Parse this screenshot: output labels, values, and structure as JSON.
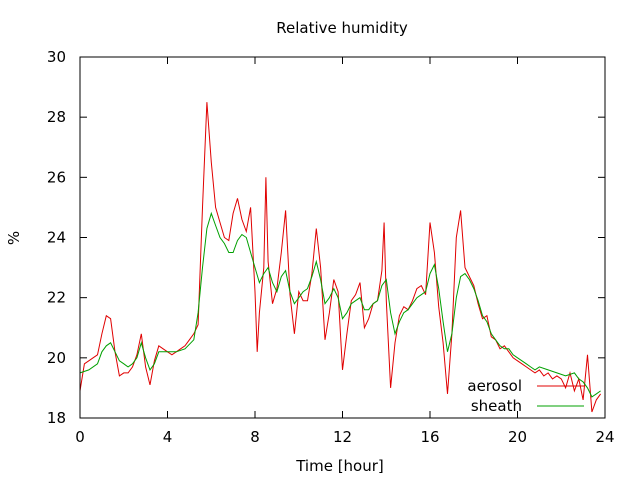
{
  "chart_data": {
    "type": "line",
    "title": "Relative humidity",
    "xlabel": "Time [hour]",
    "ylabel": "%",
    "xlim": [
      0,
      24
    ],
    "ylim": [
      18,
      30
    ],
    "xticks": [
      0,
      4,
      8,
      12,
      16,
      20,
      24
    ],
    "yticks": [
      18,
      20,
      22,
      24,
      26,
      28,
      30
    ],
    "grid": false,
    "legend_position": "bottom-right",
    "series": [
      {
        "name": "aerosol",
        "color": "#e00000",
        "points": [
          [
            0.0,
            18.9
          ],
          [
            0.2,
            19.8
          ],
          [
            0.4,
            19.9
          ],
          [
            0.6,
            20.0
          ],
          [
            0.8,
            20.1
          ],
          [
            1.0,
            20.8
          ],
          [
            1.2,
            21.4
          ],
          [
            1.4,
            21.3
          ],
          [
            1.6,
            20.2
          ],
          [
            1.8,
            19.4
          ],
          [
            2.0,
            19.5
          ],
          [
            2.2,
            19.5
          ],
          [
            2.4,
            19.7
          ],
          [
            2.6,
            20.1
          ],
          [
            2.8,
            20.8
          ],
          [
            3.0,
            19.7
          ],
          [
            3.2,
            19.1
          ],
          [
            3.4,
            19.9
          ],
          [
            3.6,
            20.4
          ],
          [
            3.8,
            20.3
          ],
          [
            4.0,
            20.2
          ],
          [
            4.2,
            20.1
          ],
          [
            4.4,
            20.2
          ],
          [
            4.6,
            20.3
          ],
          [
            4.8,
            20.4
          ],
          [
            5.0,
            20.6
          ],
          [
            5.2,
            20.8
          ],
          [
            5.4,
            21.1
          ],
          [
            5.6,
            25.0
          ],
          [
            5.8,
            28.5
          ],
          [
            6.0,
            26.5
          ],
          [
            6.2,
            25.0
          ],
          [
            6.4,
            24.5
          ],
          [
            6.6,
            24.0
          ],
          [
            6.8,
            23.9
          ],
          [
            7.0,
            24.8
          ],
          [
            7.2,
            25.3
          ],
          [
            7.4,
            24.6
          ],
          [
            7.6,
            24.2
          ],
          [
            7.8,
            25.0
          ],
          [
            8.0,
            22.2
          ],
          [
            8.1,
            20.2
          ],
          [
            8.2,
            21.5
          ],
          [
            8.4,
            23.0
          ],
          [
            8.5,
            26.0
          ],
          [
            8.6,
            23.2
          ],
          [
            8.8,
            21.8
          ],
          [
            9.0,
            22.3
          ],
          [
            9.2,
            23.5
          ],
          [
            9.4,
            24.9
          ],
          [
            9.6,
            22.1
          ],
          [
            9.8,
            20.8
          ],
          [
            10.0,
            22.2
          ],
          [
            10.2,
            21.9
          ],
          [
            10.4,
            21.9
          ],
          [
            10.6,
            22.8
          ],
          [
            10.8,
            24.3
          ],
          [
            11.0,
            23.0
          ],
          [
            11.2,
            20.6
          ],
          [
            11.4,
            21.5
          ],
          [
            11.6,
            22.6
          ],
          [
            11.8,
            22.2
          ],
          [
            12.0,
            19.6
          ],
          [
            12.2,
            20.8
          ],
          [
            12.4,
            21.9
          ],
          [
            12.6,
            22.1
          ],
          [
            12.8,
            22.5
          ],
          [
            13.0,
            21.0
          ],
          [
            13.2,
            21.3
          ],
          [
            13.4,
            21.8
          ],
          [
            13.6,
            21.9
          ],
          [
            13.8,
            22.9
          ],
          [
            13.9,
            24.5
          ],
          [
            14.0,
            21.9
          ],
          [
            14.2,
            19.0
          ],
          [
            14.4,
            20.5
          ],
          [
            14.6,
            21.4
          ],
          [
            14.8,
            21.7
          ],
          [
            15.0,
            21.6
          ],
          [
            15.2,
            21.9
          ],
          [
            15.4,
            22.3
          ],
          [
            15.6,
            22.4
          ],
          [
            15.8,
            22.1
          ],
          [
            16.0,
            24.5
          ],
          [
            16.2,
            23.5
          ],
          [
            16.4,
            21.7
          ],
          [
            16.6,
            20.5
          ],
          [
            16.8,
            18.8
          ],
          [
            17.0,
            20.8
          ],
          [
            17.2,
            24.0
          ],
          [
            17.4,
            24.9
          ],
          [
            17.6,
            23.0
          ],
          [
            17.8,
            22.7
          ],
          [
            18.0,
            22.4
          ],
          [
            18.2,
            21.8
          ],
          [
            18.4,
            21.3
          ],
          [
            18.6,
            21.4
          ],
          [
            18.8,
            20.7
          ],
          [
            19.0,
            20.6
          ],
          [
            19.2,
            20.3
          ],
          [
            19.4,
            20.4
          ],
          [
            19.6,
            20.2
          ],
          [
            19.8,
            20.0
          ],
          [
            20.0,
            19.9
          ],
          [
            20.2,
            19.8
          ],
          [
            20.4,
            19.7
          ],
          [
            20.6,
            19.6
          ],
          [
            20.8,
            19.5
          ],
          [
            21.0,
            19.6
          ],
          [
            21.2,
            19.4
          ],
          [
            21.4,
            19.5
          ],
          [
            21.6,
            19.3
          ],
          [
            21.8,
            19.4
          ],
          [
            22.0,
            19.3
          ],
          [
            22.2,
            19.0
          ],
          [
            22.4,
            19.5
          ],
          [
            22.6,
            18.9
          ],
          [
            22.8,
            19.3
          ],
          [
            23.0,
            18.6
          ],
          [
            23.2,
            20.1
          ],
          [
            23.4,
            18.2
          ],
          [
            23.6,
            18.6
          ],
          [
            23.8,
            18.8
          ]
        ]
      },
      {
        "name": "sheath",
        "color": "#00a000",
        "points": [
          [
            0.0,
            19.5
          ],
          [
            0.4,
            19.6
          ],
          [
            0.8,
            19.8
          ],
          [
            1.0,
            20.2
          ],
          [
            1.2,
            20.4
          ],
          [
            1.4,
            20.5
          ],
          [
            1.6,
            20.2
          ],
          [
            1.8,
            19.9
          ],
          [
            2.0,
            19.8
          ],
          [
            2.2,
            19.7
          ],
          [
            2.4,
            19.8
          ],
          [
            2.6,
            20.0
          ],
          [
            2.8,
            20.5
          ],
          [
            3.0,
            20.0
          ],
          [
            3.2,
            19.6
          ],
          [
            3.4,
            19.8
          ],
          [
            3.6,
            20.2
          ],
          [
            3.8,
            20.2
          ],
          [
            4.0,
            20.2
          ],
          [
            4.4,
            20.2
          ],
          [
            4.8,
            20.3
          ],
          [
            5.2,
            20.6
          ],
          [
            5.4,
            21.5
          ],
          [
            5.6,
            23.0
          ],
          [
            5.8,
            24.3
          ],
          [
            6.0,
            24.8
          ],
          [
            6.2,
            24.4
          ],
          [
            6.4,
            24.0
          ],
          [
            6.6,
            23.8
          ],
          [
            6.8,
            23.5
          ],
          [
            7.0,
            23.5
          ],
          [
            7.2,
            23.9
          ],
          [
            7.4,
            24.1
          ],
          [
            7.6,
            24.0
          ],
          [
            7.8,
            23.5
          ],
          [
            8.0,
            23.0
          ],
          [
            8.2,
            22.5
          ],
          [
            8.4,
            22.8
          ],
          [
            8.6,
            23.0
          ],
          [
            8.8,
            22.5
          ],
          [
            9.0,
            22.2
          ],
          [
            9.2,
            22.7
          ],
          [
            9.4,
            22.9
          ],
          [
            9.6,
            22.2
          ],
          [
            9.8,
            21.8
          ],
          [
            10.0,
            22.0
          ],
          [
            10.2,
            22.2
          ],
          [
            10.4,
            22.3
          ],
          [
            10.6,
            22.7
          ],
          [
            10.8,
            23.2
          ],
          [
            11.0,
            22.6
          ],
          [
            11.2,
            21.8
          ],
          [
            11.4,
            22.0
          ],
          [
            11.6,
            22.3
          ],
          [
            11.8,
            22.0
          ],
          [
            12.0,
            21.3
          ],
          [
            12.2,
            21.5
          ],
          [
            12.4,
            21.8
          ],
          [
            12.6,
            21.9
          ],
          [
            12.8,
            22.0
          ],
          [
            13.0,
            21.6
          ],
          [
            13.2,
            21.6
          ],
          [
            13.4,
            21.8
          ],
          [
            13.6,
            21.9
          ],
          [
            13.8,
            22.4
          ],
          [
            14.0,
            22.6
          ],
          [
            14.2,
            21.5
          ],
          [
            14.4,
            20.8
          ],
          [
            14.6,
            21.2
          ],
          [
            14.8,
            21.5
          ],
          [
            15.0,
            21.6
          ],
          [
            15.2,
            21.8
          ],
          [
            15.4,
            22.0
          ],
          [
            15.6,
            22.1
          ],
          [
            15.8,
            22.2
          ],
          [
            16.0,
            22.8
          ],
          [
            16.2,
            23.1
          ],
          [
            16.4,
            22.3
          ],
          [
            16.6,
            21.2
          ],
          [
            16.8,
            20.2
          ],
          [
            17.0,
            20.8
          ],
          [
            17.2,
            22.0
          ],
          [
            17.4,
            22.7
          ],
          [
            17.6,
            22.8
          ],
          [
            17.8,
            22.6
          ],
          [
            18.0,
            22.3
          ],
          [
            18.2,
            21.9
          ],
          [
            18.4,
            21.4
          ],
          [
            18.6,
            21.2
          ],
          [
            18.8,
            20.8
          ],
          [
            19.0,
            20.6
          ],
          [
            19.2,
            20.4
          ],
          [
            19.4,
            20.3
          ],
          [
            19.6,
            20.3
          ],
          [
            19.8,
            20.1
          ],
          [
            20.0,
            20.0
          ],
          [
            20.2,
            19.9
          ],
          [
            20.4,
            19.8
          ],
          [
            20.6,
            19.7
          ],
          [
            20.8,
            19.6
          ],
          [
            21.0,
            19.7
          ],
          [
            21.4,
            19.6
          ],
          [
            21.8,
            19.5
          ],
          [
            22.2,
            19.4
          ],
          [
            22.6,
            19.5
          ],
          [
            22.8,
            19.3
          ],
          [
            23.0,
            19.2
          ],
          [
            23.2,
            19.0
          ],
          [
            23.4,
            18.7
          ],
          [
            23.6,
            18.8
          ],
          [
            23.8,
            18.9
          ]
        ]
      }
    ]
  }
}
